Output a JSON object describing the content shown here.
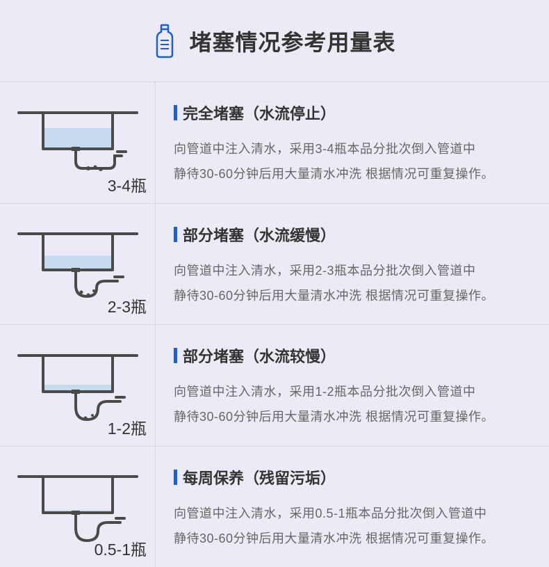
{
  "title": "堵塞情况参考用量表",
  "accent_color": "#1a5fd4",
  "water_color": "#c7dbef",
  "outline_color": "#4a4a4a",
  "bg_color": "#ecebf5",
  "text_color": "#333333",
  "desc_color": "#666666",
  "rows": [
    {
      "amount": "3-4瓶",
      "heading": "完全堵塞（水流停止）",
      "line1": "向管道中注入清水，采用3-4瓶本品分批次倒入管道中",
      "line2": "静待30-60分钟后用大量清水冲洗 根据情况可重复操作。",
      "water_level": 0.65,
      "pipe_visible": 0
    },
    {
      "amount": "2-3瓶",
      "heading": "部分堵塞（水流缓慢）",
      "line1": "向管道中注入清水，采用2-3瓶本品分批次倒入管道中",
      "line2": "静待30-60分钟后用大量清水冲洗 根据情况可重复操作。",
      "water_level": 0.45,
      "pipe_visible": 1
    },
    {
      "amount": "1-2瓶",
      "heading": "部分堵塞（水流较慢）",
      "line1": "向管道中注入清水，采用1-2瓶本品分批次倒入管道中",
      "line2": "静待30-60分钟后用大量清水冲洗 根据情况可重复操作。",
      "water_level": 0.22,
      "pipe_visible": 2
    },
    {
      "amount": "0.5-1瓶",
      "heading": "每周保养（残留污垢）",
      "line1": "向管道中注入清水，采用0.5-1瓶本品分批次倒入管道中",
      "line2": "静待30-60分钟后用大量清水冲洗 根据情况可重复操作。",
      "water_level": 0.08,
      "pipe_visible": 3
    }
  ]
}
